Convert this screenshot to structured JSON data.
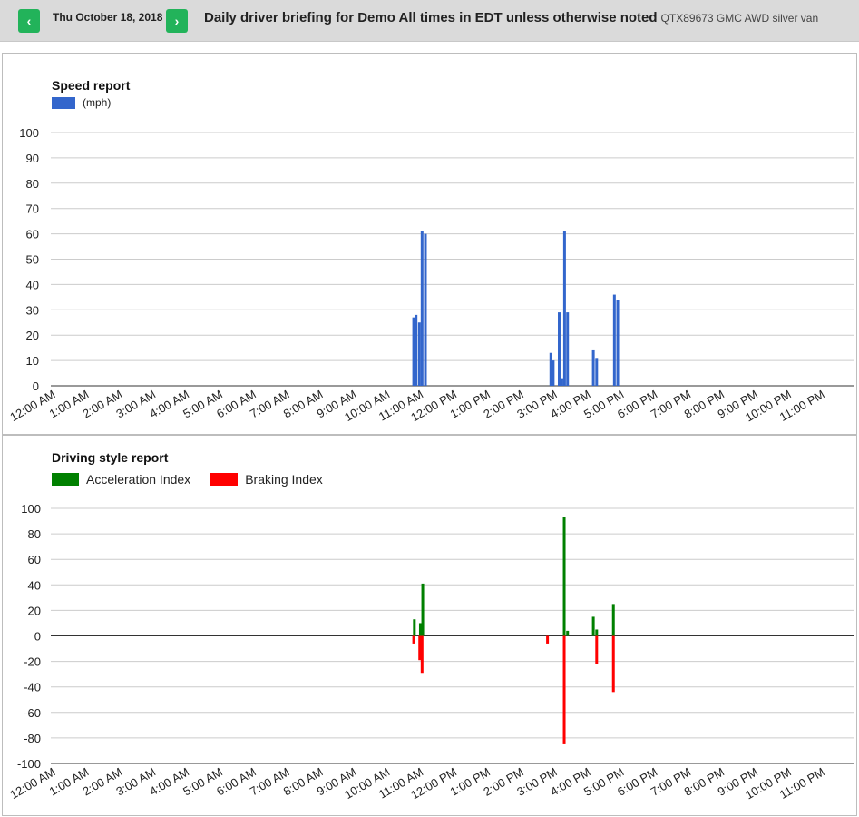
{
  "header": {
    "prev_label": "‹",
    "next_label": "›",
    "date": "Thu October 18, 2018",
    "title": "Daily driver briefing for Demo All times in EDT unless otherwise noted",
    "vehicle": "QTX89673 GMC AWD silver van"
  },
  "colors": {
    "speed": "#3366cc",
    "acceleration": "#008000",
    "braking": "#ff0000",
    "nav_button": "#22b35a"
  },
  "chart_data": [
    {
      "type": "bar",
      "title": "Speed report",
      "legend": [
        "(mph)"
      ],
      "x_ticks": [
        "12:00 AM",
        "1:00 AM",
        "2:00 AM",
        "3:00 AM",
        "4:00 AM",
        "5:00 AM",
        "6:00 AM",
        "7:00 AM",
        "8:00 AM",
        "9:00 AM",
        "10:00 AM",
        "11:00 AM",
        "12:00 PM",
        "1:00 PM",
        "2:00 PM",
        "3:00 PM",
        "4:00 PM",
        "5:00 PM",
        "6:00 PM",
        "7:00 PM",
        "8:00 PM",
        "9:00 PM",
        "10:00 PM",
        "11:00 PM"
      ],
      "y_ticks": [
        0,
        10,
        20,
        30,
        40,
        50,
        60,
        70,
        80,
        90,
        100
      ],
      "ylim": [
        0,
        100
      ],
      "xlim_hours": [
        0,
        24
      ],
      "series": [
        {
          "name": "(mph)",
          "points": [
            {
              "hour": 10.85,
              "value": 27
            },
            {
              "hour": 10.92,
              "value": 28
            },
            {
              "hour": 11.02,
              "value": 25
            },
            {
              "hour": 11.1,
              "value": 61
            },
            {
              "hour": 11.2,
              "value": 60
            },
            {
              "hour": 14.95,
              "value": 13
            },
            {
              "hour": 15.02,
              "value": 10
            },
            {
              "hour": 15.2,
              "value": 29
            },
            {
              "hour": 15.28,
              "value": 3
            },
            {
              "hour": 15.36,
              "value": 61
            },
            {
              "hour": 15.45,
              "value": 29
            },
            {
              "hour": 16.22,
              "value": 14
            },
            {
              "hour": 16.32,
              "value": 11
            },
            {
              "hour": 16.85,
              "value": 36
            },
            {
              "hour": 16.95,
              "value": 34
            }
          ]
        }
      ]
    },
    {
      "type": "bar",
      "title": "Driving style report",
      "legend": [
        "Acceleration Index",
        "Braking Index"
      ],
      "x_ticks": [
        "12:00 AM",
        "1:00 AM",
        "2:00 AM",
        "3:00 AM",
        "4:00 AM",
        "5:00 AM",
        "6:00 AM",
        "7:00 AM",
        "8:00 AM",
        "9:00 AM",
        "10:00 AM",
        "11:00 AM",
        "12:00 PM",
        "1:00 PM",
        "2:00 PM",
        "3:00 PM",
        "4:00 PM",
        "5:00 PM",
        "6:00 PM",
        "7:00 PM",
        "8:00 PM",
        "9:00 PM",
        "10:00 PM",
        "11:00 PM"
      ],
      "y_ticks": [
        100,
        80,
        60,
        40,
        20,
        0,
        -20,
        -40,
        -60,
        -80,
        -100
      ],
      "ylim": [
        -100,
        100
      ],
      "xlim_hours": [
        0,
        24
      ],
      "series": [
        {
          "name": "Acceleration Index",
          "points": [
            {
              "hour": 10.87,
              "value": 13
            },
            {
              "hour": 11.05,
              "value": 10
            },
            {
              "hour": 11.12,
              "value": 41
            },
            {
              "hour": 15.35,
              "value": 93
            },
            {
              "hour": 15.45,
              "value": 4
            },
            {
              "hour": 16.22,
              "value": 15
            },
            {
              "hour": 16.32,
              "value": 5
            },
            {
              "hour": 16.82,
              "value": 25
            }
          ]
        },
        {
          "name": "Braking Index",
          "points": [
            {
              "hour": 10.85,
              "value": -6
            },
            {
              "hour": 11.03,
              "value": -19
            },
            {
              "hour": 11.1,
              "value": -29
            },
            {
              "hour": 14.85,
              "value": -6
            },
            {
              "hour": 15.35,
              "value": -85
            },
            {
              "hour": 16.32,
              "value": -22
            },
            {
              "hour": 16.82,
              "value": -44
            }
          ]
        }
      ]
    }
  ]
}
